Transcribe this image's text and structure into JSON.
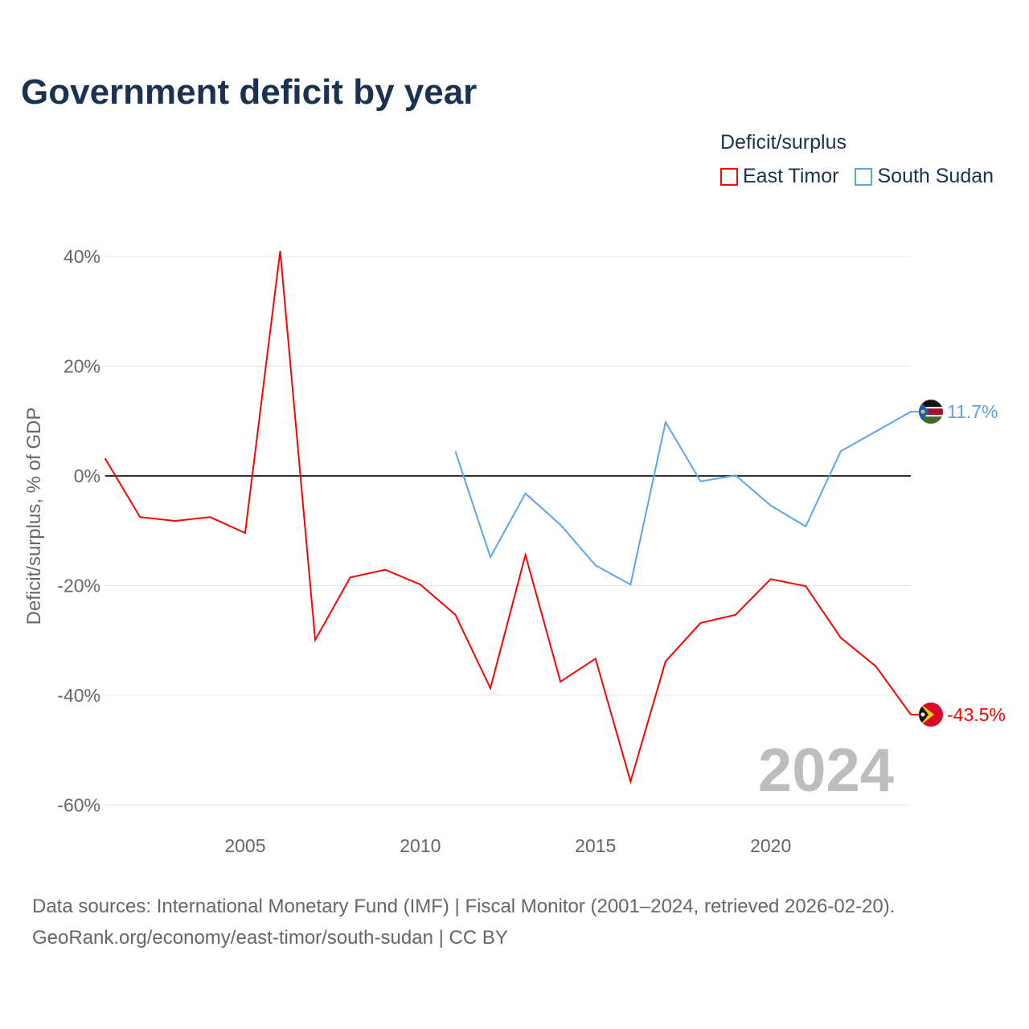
{
  "title": "Government deficit by year",
  "legend": {
    "title": "Deficit/surplus",
    "items": [
      {
        "label": "East Timor",
        "color": "#ff0000"
      },
      {
        "label": "South Sudan",
        "color": "#5ba4ea"
      }
    ]
  },
  "footer": {
    "line1": "Data sources: International Monetary Fund (IMF) | Fiscal Monitor (2001–2024, retrieved 2026-02-20).",
    "line2": "GeoRank.org/economy/east-timor/south-sudan | CC BY"
  },
  "chart_data": {
    "type": "line",
    "title": "Government deficit by year",
    "xlabel": "",
    "ylabel": "Deficit/surplus, % of GDP",
    "xlim": [
      2001,
      2024
    ],
    "ylim": [
      -60,
      40
    ],
    "xticks": [
      2005,
      2010,
      2015,
      2020
    ],
    "yticks": [
      40,
      20,
      0,
      -20,
      -40,
      -60
    ],
    "ytick_labels": [
      "40%",
      "20%",
      "0%",
      "-20%",
      "-40%",
      "-60%"
    ],
    "year_watermark": "2024",
    "grid": true,
    "legend_position": "top-right",
    "series": [
      {
        "name": "East Timor",
        "color": "#ff0000",
        "end_label": "-43.5%",
        "x": [
          2001,
          2002,
          2003,
          2004,
          2005,
          2006,
          2007,
          2008,
          2009,
          2010,
          2011,
          2012,
          2013,
          2014,
          2015,
          2016,
          2017,
          2018,
          2019,
          2020,
          2021,
          2022,
          2023,
          2024
        ],
        "values": [
          3.2,
          -7.5,
          -8.2,
          -7.5,
          -10.4,
          41.0,
          -29.9,
          -18.5,
          -17.1,
          -19.8,
          -25.3,
          -38.7,
          -14.4,
          -37.5,
          -33.3,
          -55.7,
          -33.8,
          -26.8,
          -25.3,
          -18.8,
          -20.1,
          -29.5,
          -34.7,
          -43.5
        ]
      },
      {
        "name": "South Sudan",
        "color": "#5ba4ea",
        "end_label": "11.7%",
        "x": [
          2011,
          2012,
          2013,
          2014,
          2015,
          2016,
          2017,
          2018,
          2019,
          2020,
          2021,
          2022,
          2023,
          2024
        ],
        "values": [
          4.5,
          -14.8,
          -3.2,
          -8.9,
          -16.3,
          -19.8,
          9.8,
          -1.0,
          0.1,
          -5.4,
          -9.2,
          4.5,
          8.1,
          11.7
        ]
      }
    ]
  }
}
